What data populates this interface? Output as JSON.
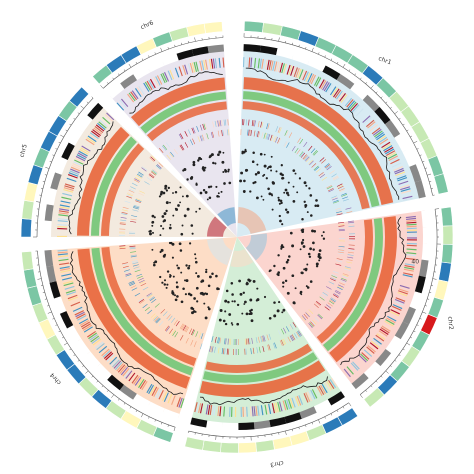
{
  "diagram": {
    "type": "circos",
    "chromosomes": [
      {
        "label": "chr1",
        "start_deg": 2,
        "end_deg": 78,
        "bg": "#d8ebf3"
      },
      {
        "label": "chr2",
        "start_deg": 82,
        "end_deg": 142,
        "bg": "#fbd5cf"
      },
      {
        "label": "chr3",
        "start_deg": 146,
        "end_deg": 194,
        "bg": "#d4eed7"
      },
      {
        "label": "chr4",
        "start_deg": 198,
        "end_deg": 266,
        "bg": "#fdddc6"
      },
      {
        "label": "chr5",
        "start_deg": 270,
        "end_deg": 314,
        "bg": "#f3eadf"
      },
      {
        "label": "chr6",
        "start_deg": 318,
        "end_deg": 356,
        "bg": "#e9e5ef"
      }
    ],
    "label_rotations": {
      "chr1": 20,
      "chr2": 85,
      "chr3": 170,
      "chr4": 230,
      "chr5": 285,
      "chr6": 336
    },
    "tick_value_label": "40",
    "colors": {
      "heat_high": "#2b7bb9",
      "heat_mid": "#7bc6a4",
      "heat_low": "#c7e9b4",
      "heat_pale": "#fff7bc",
      "heat_alert": "#d7191c",
      "line_band": "#e8653a",
      "ideogram_dark": "#111111",
      "ideogram_gray": "#888888",
      "points": "#222222"
    }
  }
}
